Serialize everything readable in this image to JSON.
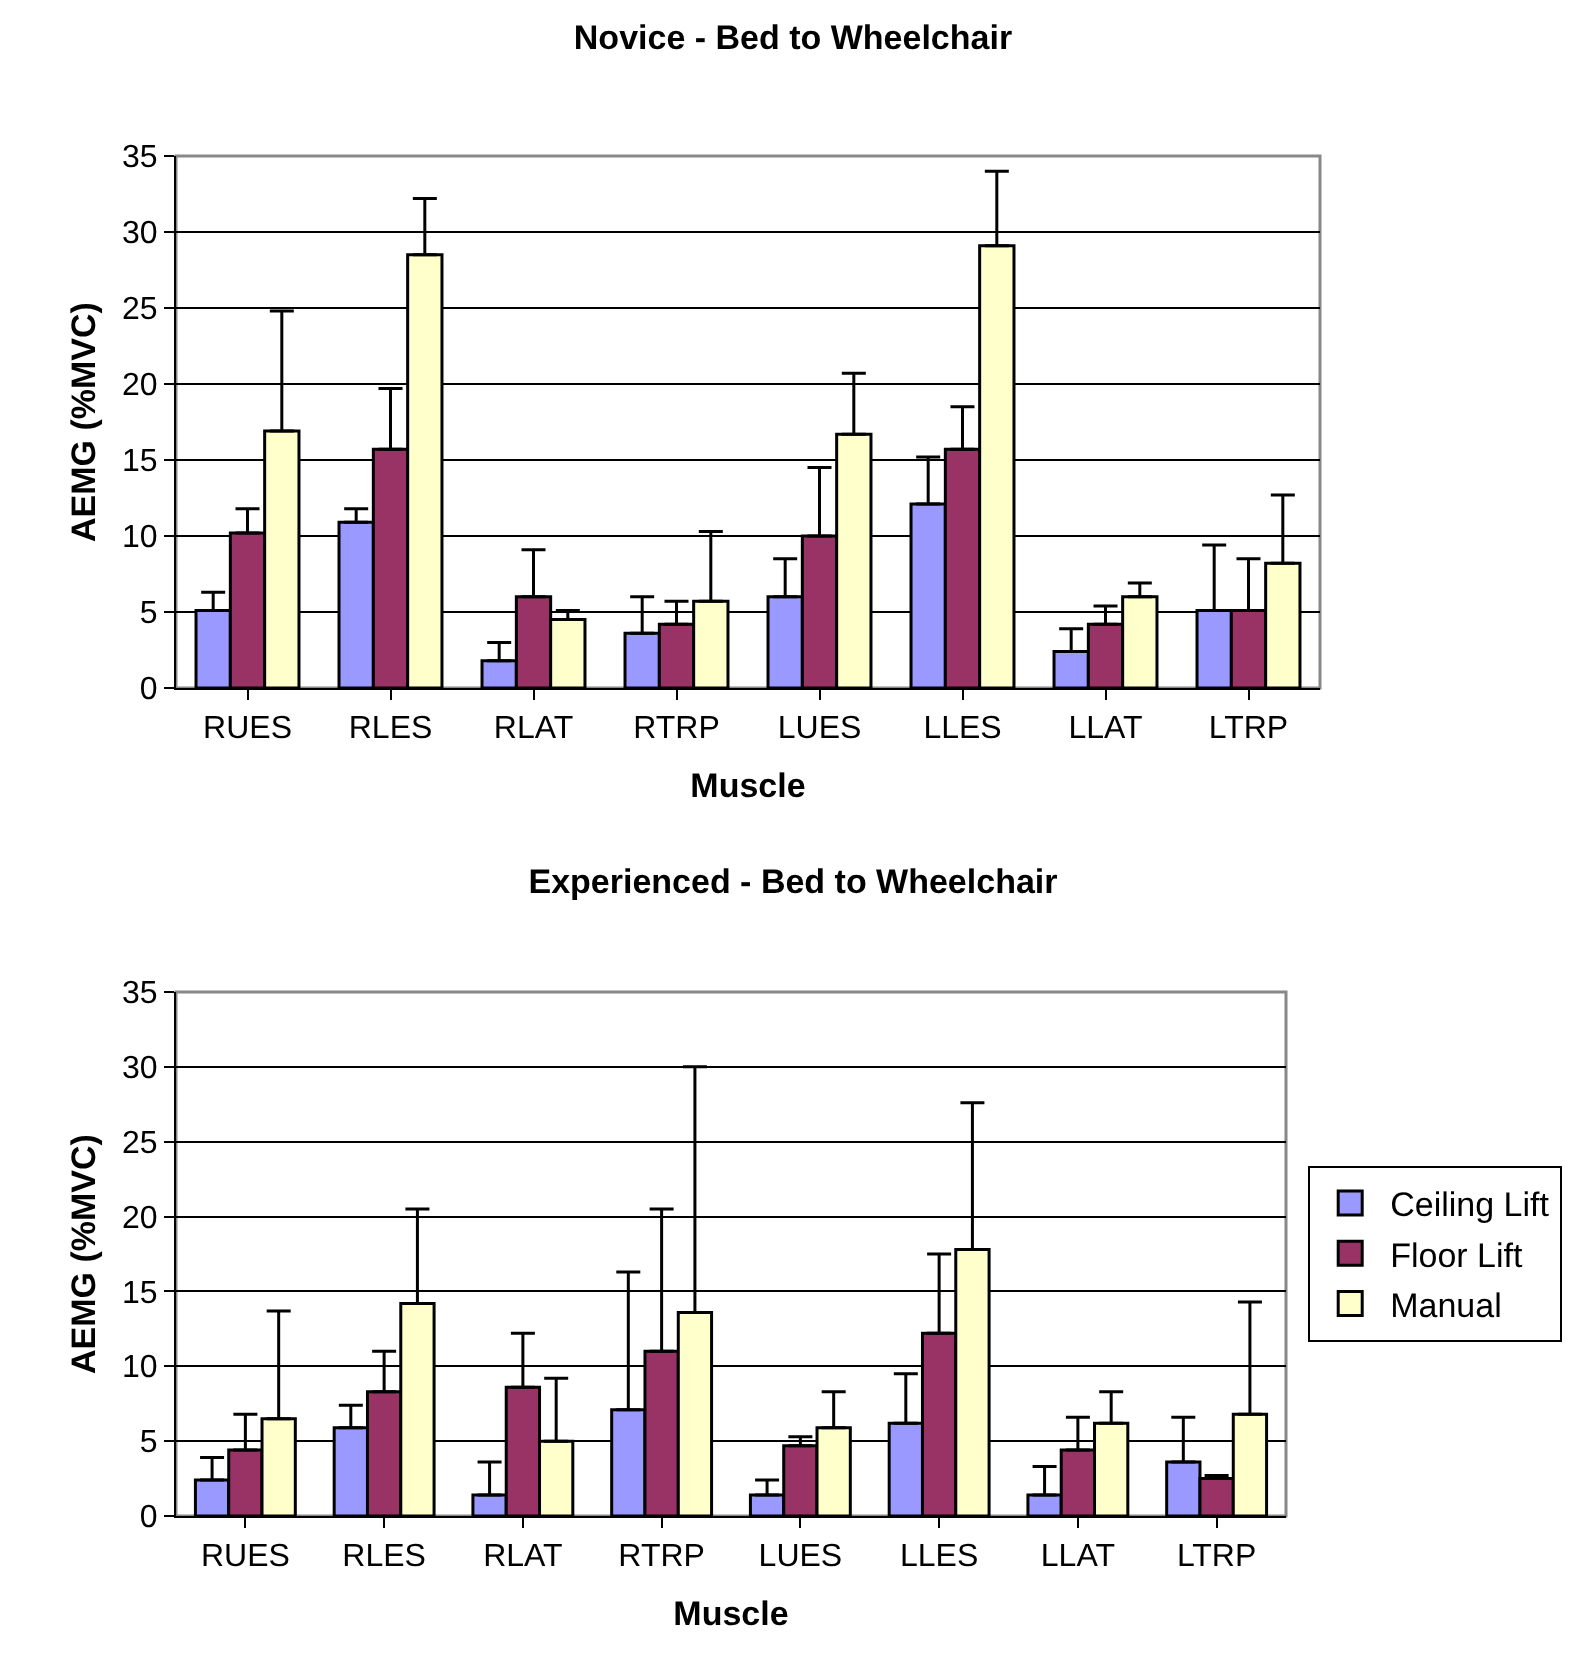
{
  "chart_data": [
    {
      "type": "bar",
      "title": "Novice - Bed to Wheelchair",
      "xlabel": "Muscle",
      "ylabel": "AEMG (%MVC)",
      "categories": [
        "RUES",
        "RLES",
        "RLAT",
        "RTRP",
        "LUES",
        "LLES",
        "LLAT",
        "LTRP"
      ],
      "series": [
        {
          "color": "#9999ff",
          "values": [
            5.1,
            10.9,
            1.8,
            3.6,
            6.0,
            12.1,
            2.4,
            5.1
          ],
          "errors": [
            [
              5.1,
              6.3
            ],
            [
              10.9,
              11.8
            ],
            [
              1.8,
              3.0
            ],
            [
              3.6,
              6.0
            ],
            [
              6.0,
              8.5
            ],
            [
              12.1,
              15.2
            ],
            [
              2.4,
              3.9
            ],
            [
              5.1,
              9.4
            ]
          ]
        },
        {
          "color": "#993366",
          "values": [
            10.2,
            15.7,
            6.0,
            4.2,
            10.0,
            15.7,
            4.2,
            5.1
          ],
          "errors": [
            [
              10.2,
              11.8
            ],
            [
              15.7,
              19.7
            ],
            [
              6.0,
              9.1
            ],
            [
              4.2,
              5.7
            ],
            [
              10.0,
              14.5
            ],
            [
              15.7,
              18.5
            ],
            [
              4.2,
              5.4
            ],
            [
              5.1,
              8.5
            ]
          ]
        },
        {
          "color": "#ffffcc",
          "values": [
            16.9,
            28.5,
            4.5,
            5.7,
            16.7,
            29.1,
            6.0,
            8.2
          ],
          "errors": [
            [
              16.9,
              24.8
            ],
            [
              28.5,
              32.2
            ],
            [
              4.5,
              5.1
            ],
            [
              5.7,
              10.3
            ],
            [
              16.7,
              20.7
            ],
            [
              29.1,
              34.0
            ],
            [
              6.0,
              6.9
            ],
            [
              8.2,
              12.7
            ]
          ]
        }
      ],
      "ylim": [
        0,
        35
      ],
      "yticks": [
        0,
        5,
        10,
        15,
        20,
        25,
        30,
        35
      ],
      "grid": "y",
      "legend": false
    },
    {
      "type": "bar",
      "title": "Experienced - Bed to Wheelchair",
      "xlabel": "Muscle",
      "ylabel": "AEMG (%MVC)",
      "categories": [
        "RUES",
        "RLES",
        "RLAT",
        "RTRP",
        "LUES",
        "LLES",
        "LLAT",
        "LTRP"
      ],
      "series": [
        {
          "name": "Ceiling Lift",
          "color": "#9999ff",
          "values": [
            2.4,
            5.9,
            1.4,
            7.1,
            1.4,
            6.2,
            1.4,
            3.6
          ],
          "errors": [
            [
              2.4,
              3.9
            ],
            [
              5.9,
              7.4
            ],
            [
              1.4,
              3.6
            ],
            [
              7.1,
              16.3
            ],
            [
              1.4,
              2.4
            ],
            [
              6.2,
              9.5
            ],
            [
              1.4,
              3.3
            ],
            [
              3.6,
              6.6
            ]
          ]
        },
        {
          "name": "Floor Lift",
          "color": "#993366",
          "values": [
            4.4,
            8.3,
            8.6,
            11.0,
            4.7,
            12.2,
            4.4,
            2.5
          ],
          "errors": [
            [
              4.4,
              6.8
            ],
            [
              8.3,
              11.0
            ],
            [
              8.6,
              12.2
            ],
            [
              11.0,
              20.5
            ],
            [
              4.7,
              5.3
            ],
            [
              12.2,
              17.5
            ],
            [
              4.4,
              6.6
            ],
            [
              2.5,
              2.7
            ]
          ]
        },
        {
          "name": "Manual",
          "color": "#ffffcc",
          "values": [
            6.5,
            14.2,
            5.0,
            13.6,
            5.9,
            17.8,
            6.2,
            6.8
          ],
          "errors": [
            [
              6.5,
              13.7
            ],
            [
              14.2,
              20.5
            ],
            [
              5.0,
              9.2
            ],
            [
              13.6,
              30.0
            ],
            [
              5.9,
              8.3
            ],
            [
              17.8,
              27.6
            ],
            [
              6.2,
              8.3
            ],
            [
              6.8,
              14.3
            ]
          ]
        }
      ],
      "ylim": [
        0,
        35
      ],
      "yticks": [
        0,
        5,
        10,
        15,
        20,
        25,
        30,
        35
      ],
      "grid": "y",
      "legend": "right"
    }
  ]
}
